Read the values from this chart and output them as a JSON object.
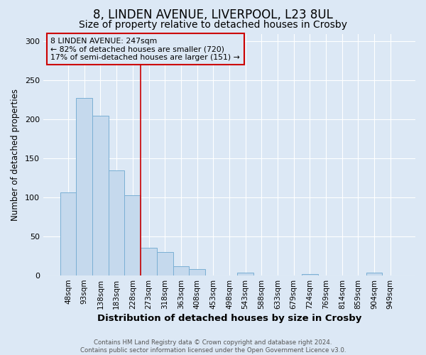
{
  "title": "8, LINDEN AVENUE, LIVERPOOL, L23 8UL",
  "subtitle": "Size of property relative to detached houses in Crosby",
  "xlabel": "Distribution of detached houses by size in Crosby",
  "ylabel": "Number of detached properties",
  "footer_line1": "Contains HM Land Registry data © Crown copyright and database right 2024.",
  "footer_line2": "Contains public sector information licensed under the Open Government Licence v3.0.",
  "annotation_title": "8 LINDEN AVENUE: 247sqm",
  "annotation_line2": "← 82% of detached houses are smaller (720)",
  "annotation_line3": "17% of semi-detached houses are larger (151) →",
  "bar_labels": [
    "48sqm",
    "93sqm",
    "138sqm",
    "183sqm",
    "228sqm",
    "273sqm",
    "318sqm",
    "363sqm",
    "408sqm",
    "453sqm",
    "498sqm",
    "543sqm",
    "588sqm",
    "633sqm",
    "679sqm",
    "724sqm",
    "769sqm",
    "814sqm",
    "859sqm",
    "904sqm",
    "949sqm"
  ],
  "bar_values": [
    107,
    228,
    205,
    135,
    103,
    36,
    30,
    12,
    8,
    0,
    0,
    4,
    0,
    0,
    0,
    2,
    0,
    0,
    0,
    4,
    0
  ],
  "bar_color": "#c5d9ed",
  "bar_edge_color": "#7aafd4",
  "property_line_x": 4.5,
  "ylim": [
    0,
    310
  ],
  "yticks": [
    0,
    50,
    100,
    150,
    200,
    250,
    300
  ],
  "background_color": "#dce8f5",
  "grid_color": "#ffffff",
  "title_fontsize": 12,
  "subtitle_fontsize": 10,
  "tick_fontsize": 7.5,
  "red_line_color": "#cc0000",
  "annotation_border_color": "#cc0000"
}
